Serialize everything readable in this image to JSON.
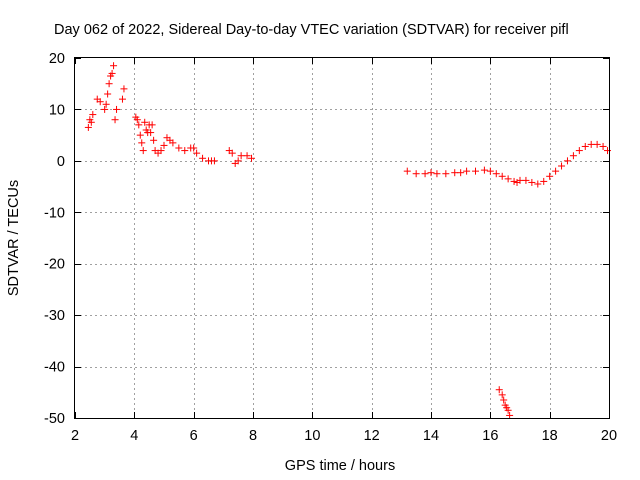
{
  "chart_data": {
    "type": "scatter",
    "title": "Day 062 of 2022, Sidereal Day-to-day VTEC variation (SDTVAR) for receiver pifl",
    "xlabel": "GPS time / hours",
    "ylabel": "SDTVAR / TECUs",
    "xlim": [
      2,
      20
    ],
    "ylim": [
      -50,
      20
    ],
    "xticks": [
      "2",
      "4",
      "6",
      "8",
      "10",
      "12",
      "14",
      "16",
      "18",
      "20"
    ],
    "yticks": [
      "20",
      "10",
      "0",
      "-10",
      "-20",
      "-30",
      "-40",
      "-50"
    ],
    "grid": true,
    "marker": "plus",
    "series_color": "#ff0000",
    "series": [
      {
        "name": "SDTVAR",
        "points": [
          [
            2.45,
            6.5
          ],
          [
            2.5,
            8.0
          ],
          [
            2.55,
            7.5
          ],
          [
            2.6,
            9.0
          ],
          [
            2.75,
            12.0
          ],
          [
            2.85,
            11.5
          ],
          [
            3.0,
            10.0
          ],
          [
            3.05,
            11.0
          ],
          [
            3.1,
            13.0
          ],
          [
            3.15,
            15.0
          ],
          [
            3.2,
            16.5
          ],
          [
            3.25,
            17.0
          ],
          [
            3.3,
            18.5
          ],
          [
            3.35,
            8.0
          ],
          [
            3.4,
            10.0
          ],
          [
            3.6,
            12.0
          ],
          [
            3.65,
            14.0
          ],
          [
            4.05,
            8.5
          ],
          [
            4.1,
            8.0
          ],
          [
            4.15,
            7.0
          ],
          [
            4.2,
            5.0
          ],
          [
            4.25,
            3.5
          ],
          [
            4.3,
            2.0
          ],
          [
            4.35,
            7.5
          ],
          [
            4.4,
            6.0
          ],
          [
            4.45,
            5.5
          ],
          [
            4.5,
            7.0
          ],
          [
            4.55,
            5.5
          ],
          [
            4.6,
            7.0
          ],
          [
            4.65,
            4.0
          ],
          [
            4.7,
            2.0
          ],
          [
            4.8,
            1.5
          ],
          [
            4.9,
            2.0
          ],
          [
            5.0,
            3.0
          ],
          [
            5.1,
            4.5
          ],
          [
            5.2,
            4.0
          ],
          [
            5.3,
            3.5
          ],
          [
            5.5,
            2.5
          ],
          [
            5.7,
            2.0
          ],
          [
            5.9,
            2.5
          ],
          [
            6.0,
            2.5
          ],
          [
            6.1,
            1.5
          ],
          [
            6.3,
            0.5
          ],
          [
            6.5,
            0.0
          ],
          [
            6.6,
            0.0
          ],
          [
            6.7,
            0.0
          ],
          [
            7.2,
            2.0
          ],
          [
            7.3,
            1.5
          ],
          [
            7.4,
            -0.5
          ],
          [
            7.5,
            0.0
          ],
          [
            7.6,
            1.0
          ],
          [
            7.8,
            1.0
          ],
          [
            7.95,
            0.5
          ],
          [
            13.2,
            -2.0
          ],
          [
            13.5,
            -2.5
          ],
          [
            13.8,
            -2.5
          ],
          [
            14.0,
            -2.3
          ],
          [
            14.2,
            -2.5
          ],
          [
            14.5,
            -2.5
          ],
          [
            14.8,
            -2.3
          ],
          [
            15.0,
            -2.3
          ],
          [
            15.2,
            -2.0
          ],
          [
            15.5,
            -2.0
          ],
          [
            15.8,
            -1.8
          ],
          [
            16.0,
            -2.0
          ],
          [
            16.2,
            -2.5
          ],
          [
            16.4,
            -3.0
          ],
          [
            16.6,
            -3.5
          ],
          [
            16.8,
            -4.0
          ],
          [
            16.9,
            -4.2
          ],
          [
            17.0,
            -3.8
          ],
          [
            17.2,
            -3.8
          ],
          [
            17.4,
            -4.2
          ],
          [
            17.6,
            -4.5
          ],
          [
            17.8,
            -4.0
          ],
          [
            18.0,
            -3.0
          ],
          [
            18.2,
            -2.0
          ],
          [
            18.4,
            -1.0
          ],
          [
            18.6,
            0.0
          ],
          [
            18.8,
            1.0
          ],
          [
            19.0,
            2.0
          ],
          [
            19.2,
            2.8
          ],
          [
            19.4,
            3.2
          ],
          [
            19.6,
            3.2
          ],
          [
            19.8,
            2.8
          ],
          [
            19.95,
            2.0
          ],
          [
            16.3,
            -44.5
          ],
          [
            16.4,
            -45.5
          ],
          [
            16.45,
            -46.5
          ],
          [
            16.5,
            -47.5
          ],
          [
            16.55,
            -48.0
          ],
          [
            16.6,
            -48.5
          ],
          [
            16.65,
            -49.5
          ]
        ]
      }
    ]
  }
}
